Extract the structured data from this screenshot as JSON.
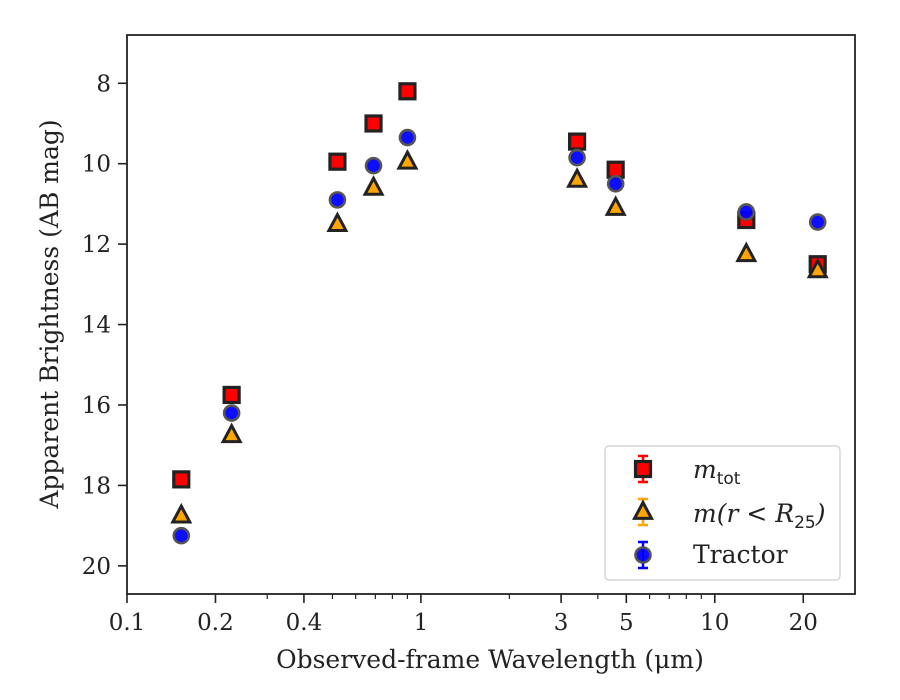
{
  "chart_data": {
    "type": "scatter",
    "title": "",
    "xlabel": "Observed-frame Wavelength (μm)",
    "ylabel": "Apparent Brightness (AB mag)",
    "xscale": "log",
    "yaxis_inverted": true,
    "xlim": [
      0.1,
      30
    ],
    "ylim": [
      20.7,
      6.8
    ],
    "x_major_ticks": [
      0.1,
      0.2,
      0.4,
      1,
      3,
      5,
      10,
      20
    ],
    "x_tick_labels": [
      "0.1",
      "0.2",
      "0.4",
      "1",
      "3",
      "5",
      "10",
      "20"
    ],
    "y_ticks": [
      8,
      10,
      12,
      14,
      16,
      18,
      20
    ],
    "y_tick_labels": [
      "8",
      "10",
      "12",
      "14",
      "16",
      "18",
      "20"
    ],
    "grid": false,
    "legend_position": "lower-right",
    "colors": {
      "m_tot": "#ff0000",
      "m_r25": "#ffa500",
      "tractor": "#0000ff",
      "edge": "#222222"
    },
    "series": [
      {
        "name": "m_tot",
        "marker": "square",
        "x": [
          0.153,
          0.227,
          0.52,
          0.69,
          0.9,
          3.4,
          4.6,
          12.8,
          22.4
        ],
        "y": [
          17.85,
          15.75,
          9.95,
          9.0,
          8.2,
          9.45,
          10.15,
          11.4,
          12.5
        ]
      },
      {
        "name": "m(r<R25)",
        "marker": "triangle",
        "x": [
          0.153,
          0.227,
          0.52,
          0.69,
          0.9,
          3.4,
          4.6,
          12.8,
          22.4
        ],
        "y": [
          18.75,
          16.75,
          11.5,
          10.6,
          9.95,
          10.4,
          11.1,
          12.25,
          12.65
        ]
      },
      {
        "name": "Tractor",
        "marker": "circle",
        "x": [
          0.153,
          0.227,
          0.52,
          0.69,
          0.9,
          3.4,
          4.6,
          12.8,
          22.4
        ],
        "y": [
          19.25,
          16.2,
          10.9,
          10.05,
          9.35,
          9.85,
          10.5,
          11.2,
          11.45
        ]
      }
    ],
    "legend": {
      "m_tot": {
        "base": "m",
        "sub": "tot"
      },
      "m_r25": {
        "open": "m(r < R",
        "sub": "25",
        "close": ")"
      },
      "tractor": "Tractor"
    }
  }
}
